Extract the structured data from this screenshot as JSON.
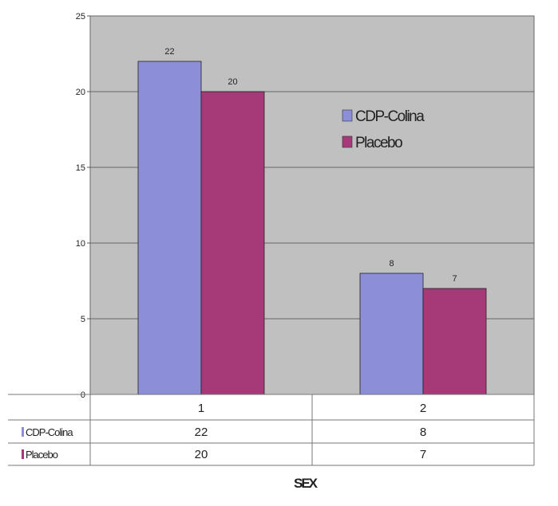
{
  "chart_data": {
    "type": "bar",
    "categories": [
      "1",
      "2"
    ],
    "series": [
      {
        "name": "CDP-Colina",
        "values": [
          22,
          8
        ],
        "color": "#8c8fd8"
      },
      {
        "name": "Placebo",
        "values": [
          20,
          7
        ],
        "color": "#a63a78"
      }
    ],
    "ylim": [
      0,
      25
    ],
    "yticks": [
      0,
      5,
      10,
      15,
      20,
      25
    ],
    "xlabel": "SEX",
    "ylabel": "",
    "grid": true,
    "legend": "top-right",
    "data_table": true,
    "plot_background": "#c0c0c0"
  }
}
